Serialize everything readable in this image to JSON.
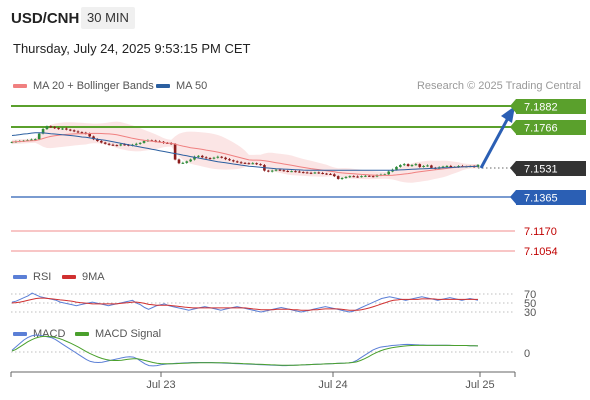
{
  "header": {
    "symbol": "USD/CNH",
    "timeframe": "30 MIN"
  },
  "datetime": "Thursday, July 24, 2025 9:53:15 PM CET",
  "legend": {
    "ma20": "MA 20 + Bollinger Bands",
    "ma50": "MA 50",
    "rsi": "RSI",
    "rsi_ma": "9MA",
    "macd": "MACD",
    "macd_signal": "MACD Signal"
  },
  "credit": "Research © 2025 Trading Central",
  "price_levels": {
    "r2": "7.1882",
    "r1": "7.1766",
    "last": "7.1531",
    "pivot": "7.1365",
    "s1": "7.1170",
    "s2": "7.1054"
  },
  "rsi_levels": [
    "70",
    "50",
    "30"
  ],
  "macd_level": "0",
  "x_labels": [
    "Jul 23",
    "Jul 24",
    "Jul 25"
  ],
  "colors": {
    "resistance": "#5aa02c",
    "pivot": "#2b5fb4",
    "support": "#f3a5a5",
    "support_text": "#c00000",
    "last": "#333333",
    "ma20": "#f08080",
    "ma50": "#2b5fa0",
    "rsi": "#5b7fd6",
    "rsi_ma": "#d03030",
    "macd": "#5b7fd6",
    "macd_signal": "#4aa02c",
    "arrow": "#2b5fb4"
  },
  "chart_data": {
    "type": "candlestick",
    "price_axis": {
      "min": 7.1,
      "max": 7.192
    },
    "candles_close": [
      7.1655,
      7.1658,
      7.166,
      7.1662,
      7.1665,
      7.1668,
      7.167,
      7.17,
      7.1725,
      7.174,
      7.1735,
      7.173,
      7.1725,
      7.1728,
      7.1722,
      7.1718,
      7.1712,
      7.1708,
      7.1705,
      7.17,
      7.1685,
      7.167,
      7.166,
      7.1652,
      7.1645,
      7.164,
      7.1638,
      7.1636,
      7.1642,
      7.164,
      7.1636,
      7.164,
      7.1645,
      7.165,
      7.166,
      7.1664,
      7.1662,
      7.1658,
      7.1656,
      7.165,
      7.1648,
      7.1645,
      7.156,
      7.154,
      7.1542,
      7.155,
      7.156,
      7.1575,
      7.158,
      7.1572,
      7.1568,
      7.1565,
      7.157,
      7.1575,
      7.157,
      7.1562,
      7.1556,
      7.155,
      7.1545,
      7.1542,
      7.154,
      7.1538,
      7.154,
      7.1535,
      7.153,
      7.15,
      7.1495,
      7.15,
      7.1505,
      7.1502,
      7.1498,
      7.1496,
      7.1497,
      7.1495,
      7.1492,
      7.149,
      7.1488,
      7.1486,
      7.149,
      7.1487,
      7.1484,
      7.1482,
      7.148,
      7.147,
      7.1455,
      7.146,
      7.1465,
      7.147,
      7.1468,
      7.1466,
      7.147,
      7.1472,
      7.147,
      7.1468,
      7.1475,
      7.1478,
      7.148,
      7.1495,
      7.1505,
      7.152,
      7.153,
      7.1535,
      7.1525,
      7.153,
      7.1535,
      7.152,
      7.1525,
      7.1528,
      7.1515,
      7.151,
      7.1518,
      7.1522,
      7.1525,
      7.1518,
      7.152,
      7.1525,
      7.1522,
      7.1523,
      7.1524,
      7.152,
      7.1531
    ],
    "ma50": [
      7.169,
      7.1692,
      7.1695,
      7.1698,
      7.17,
      7.1703,
      7.1705,
      7.1705,
      7.1704,
      7.1702,
      7.17,
      7.1698,
      7.1696,
      7.1694,
      7.1692,
      7.169,
      7.1688,
      7.1685,
      7.1682,
      7.168,
      7.1677,
      7.1674,
      7.167,
      7.1667,
      7.1664,
      7.166,
      7.1656,
      7.1652,
      7.1648,
      7.1644,
      7.164,
      7.1636,
      7.1632,
      7.1628,
      7.1624,
      7.162,
      7.1616,
      7.1612,
      7.1608,
      7.1604,
      7.16,
      7.1596,
      7.1592,
      7.1588,
      7.1584,
      7.158,
      7.1576,
      7.1572,
      7.1568,
      7.1564,
      7.156,
      7.1556,
      7.1552,
      7.1548,
      7.1545,
      7.1542,
      7.1539,
      7.1536,
      7.1533,
      7.153,
      7.1527,
      7.1524,
      7.1522,
      7.152,
      7.1518,
      7.1516,
      7.1514,
      7.1512,
      7.151,
      7.1509,
      7.1508,
      7.1507,
      7.1506,
      7.1505,
      7.1504,
      7.1503,
      7.1502,
      7.1502,
      7.1502,
      7.1502,
      7.1502,
      7.1502,
      7.1502,
      7.1502,
      7.1502,
      7.1502,
      7.1502,
      7.1502,
      7.1502,
      7.1502,
      7.1502,
      7.1502,
      7.1502,
      7.1502,
      7.1502,
      7.1502,
      7.1502,
      7.1502,
      7.1502,
      7.1503,
      7.1504,
      7.1505,
      7.1506,
      7.1507,
      7.1508,
      7.1509,
      7.151,
      7.1511,
      7.1512,
      7.1513,
      7.1514,
      7.1515,
      7.1516,
      7.1517,
      7.1518,
      7.1519,
      7.152,
      7.1521,
      7.1522,
      7.1523,
      7.1524
    ],
    "rsi_axis": {
      "min": 0,
      "max": 100
    },
    "rsi": [
      52,
      54,
      58,
      62,
      66,
      72,
      68,
      64,
      62,
      60,
      58,
      56,
      52,
      50,
      48,
      46,
      44,
      46,
      48,
      50,
      52,
      50,
      48,
      46,
      44,
      46,
      48,
      50,
      52,
      54,
      56,
      50,
      46,
      40,
      36,
      40,
      44,
      46,
      48,
      44,
      42,
      40,
      38,
      36,
      34,
      36,
      38,
      40,
      42,
      40,
      38,
      36,
      34,
      36,
      38,
      40,
      42,
      40,
      38,
      36,
      34,
      32,
      30,
      32,
      34,
      36,
      38,
      40,
      38,
      36,
      34,
      32,
      30,
      32,
      34,
      36,
      38,
      40,
      42,
      40,
      38,
      36,
      34,
      32,
      30,
      32,
      36,
      40,
      44,
      48,
      52,
      56,
      60,
      62,
      64,
      62,
      60,
      58,
      56,
      58,
      60,
      62,
      64,
      62,
      60,
      58,
      56,
      58,
      60,
      62,
      60,
      58,
      56,
      58,
      60,
      58,
      56
    ],
    "rsi_ma": [
      50,
      51,
      52,
      54,
      56,
      58,
      60,
      61,
      61,
      60,
      59,
      58,
      57,
      56,
      55,
      54,
      52,
      51,
      50,
      49,
      48,
      48,
      48,
      48,
      48,
      48,
      48,
      49,
      50,
      51,
      52,
      52,
      51,
      49,
      47,
      46,
      45,
      45,
      45,
      45,
      44,
      43,
      42,
      41,
      40,
      39,
      39,
      39,
      39,
      39,
      39,
      39,
      39,
      39,
      39,
      39,
      39,
      39,
      39,
      38,
      37,
      36,
      35,
      35,
      35,
      35,
      36,
      36,
      36,
      36,
      35,
      35,
      34,
      34,
      34,
      35,
      35,
      36,
      37,
      37,
      37,
      37,
      36,
      35,
      34,
      34,
      34,
      35,
      37,
      39,
      42,
      45,
      48,
      51,
      54,
      56,
      57,
      58,
      58,
      58,
      58,
      58,
      59,
      59,
      59,
      59,
      58,
      58,
      58,
      58,
      58,
      58,
      58,
      58,
      58,
      58,
      58
    ],
    "macd_axis": {
      "min": -1,
      "max": 1
    },
    "macd": [
      0.1,
      0.3,
      0.5,
      0.7,
      0.85,
      0.95,
      1.0,
      0.98,
      0.95,
      0.9,
      0.85,
      0.75,
      0.6,
      0.45,
      0.3,
      0.15,
      0.0,
      -0.15,
      -0.3,
      -0.45,
      -0.55,
      -0.6,
      -0.62,
      -0.6,
      -0.55,
      -0.5,
      -0.45,
      -0.4,
      -0.35,
      -0.3,
      -0.28,
      -0.3,
      -0.4,
      -0.55,
      -0.7,
      -0.8,
      -0.82,
      -0.8,
      -0.75,
      -0.72,
      -0.7,
      -0.68,
      -0.66,
      -0.65,
      -0.64,
      -0.63,
      -0.62,
      -0.62,
      -0.62,
      -0.62,
      -0.62,
      -0.62,
      -0.63,
      -0.64,
      -0.65,
      -0.66,
      -0.67,
      -0.68,
      -0.69,
      -0.7,
      -0.71,
      -0.72,
      -0.73,
      -0.74,
      -0.75,
      -0.76,
      -0.77,
      -0.78,
      -0.79,
      -0.8,
      -0.8,
      -0.79,
      -0.78,
      -0.77,
      -0.76,
      -0.75,
      -0.74,
      -0.73,
      -0.72,
      -0.71,
      -0.7,
      -0.69,
      -0.68,
      -0.67,
      -0.66,
      -0.65,
      -0.64,
      -0.6,
      -0.5,
      -0.35,
      -0.2,
      -0.05,
      0.1,
      0.2,
      0.28,
      0.32,
      0.35,
      0.38,
      0.4,
      0.42,
      0.44,
      0.45,
      0.44,
      0.43,
      0.42,
      0.41,
      0.4,
      0.4,
      0.4,
      0.4,
      0.4,
      0.4,
      0.39,
      0.38,
      0.38,
      0.38,
      0.38,
      0.37,
      0.37,
      0.36
    ],
    "macd_signal": [
      0.05,
      0.15,
      0.3,
      0.45,
      0.6,
      0.72,
      0.82,
      0.88,
      0.92,
      0.92,
      0.9,
      0.86,
      0.8,
      0.72,
      0.62,
      0.52,
      0.4,
      0.28,
      0.15,
      0.02,
      -0.1,
      -0.2,
      -0.3,
      -0.38,
      -0.44,
      -0.48,
      -0.5,
      -0.5,
      -0.48,
      -0.45,
      -0.42,
      -0.4,
      -0.4,
      -0.44,
      -0.5,
      -0.56,
      -0.62,
      -0.66,
      -0.68,
      -0.69,
      -0.69,
      -0.69,
      -0.68,
      -0.67,
      -0.66,
      -0.65,
      -0.64,
      -0.64,
      -0.63,
      -0.63,
      -0.63,
      -0.63,
      -0.63,
      -0.63,
      -0.63,
      -0.64,
      -0.65,
      -0.66,
      -0.67,
      -0.68,
      -0.69,
      -0.7,
      -0.71,
      -0.72,
      -0.73,
      -0.74,
      -0.75,
      -0.76,
      -0.77,
      -0.78,
      -0.78,
      -0.78,
      -0.78,
      -0.77,
      -0.76,
      -0.75,
      -0.74,
      -0.73,
      -0.72,
      -0.71,
      -0.7,
      -0.69,
      -0.68,
      -0.67,
      -0.66,
      -0.65,
      -0.64,
      -0.62,
      -0.58,
      -0.5,
      -0.4,
      -0.28,
      -0.15,
      -0.04,
      0.06,
      0.14,
      0.2,
      0.25,
      0.29,
      0.32,
      0.35,
      0.37,
      0.38,
      0.39,
      0.39,
      0.39,
      0.39,
      0.39,
      0.39,
      0.39,
      0.39,
      0.39,
      0.39,
      0.38,
      0.38,
      0.38,
      0.38,
      0.37,
      0.37,
      0.36
    ]
  }
}
